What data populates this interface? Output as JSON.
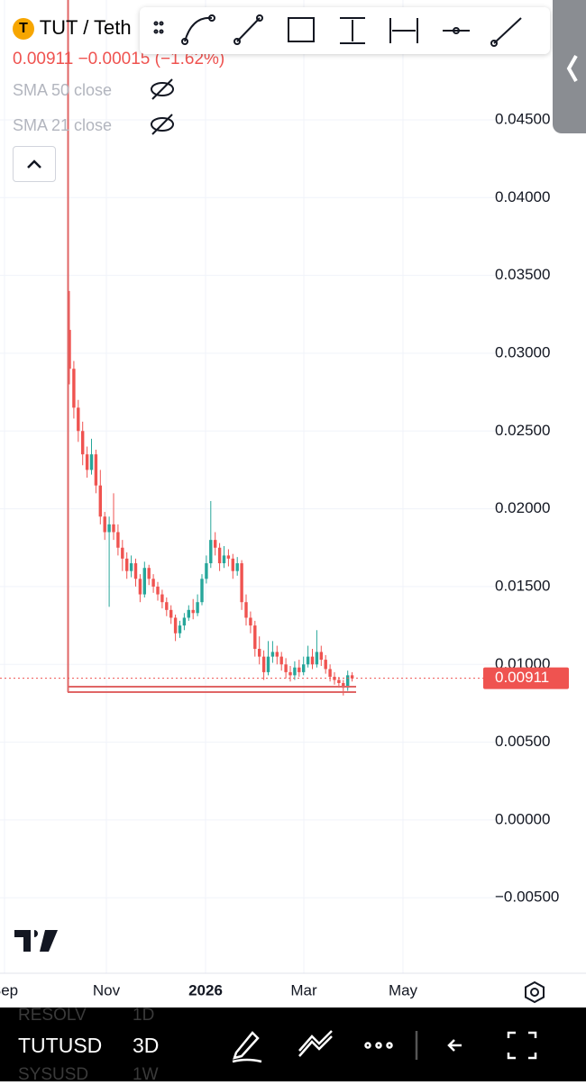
{
  "header": {
    "symbol": "TUT / Teth",
    "last": "0.00911",
    "change": "−0.00015 (−1.62%)"
  },
  "indicators": [
    "SMA 50 close",
    "SMA 21 close"
  ],
  "chart_data": {
    "type": "candlestick",
    "open": [
      0.0315,
      0.029,
      0.0265,
      0.025,
      0.0235,
      0.0225,
      0.0235,
      0.0215,
      0.0195,
      0.0185,
      0.019,
      0.0185,
      0.0175,
      0.0168,
      0.016,
      0.0165,
      0.0155,
      0.0145,
      0.0162,
      0.0155,
      0.015,
      0.0145,
      0.014,
      0.0135,
      0.013,
      0.012,
      0.0125,
      0.013,
      0.0135,
      0.0133,
      0.014,
      0.0155,
      0.0165,
      0.018,
      0.0175,
      0.0165,
      0.017,
      0.0168,
      0.016,
      0.0165,
      0.014,
      0.013,
      0.0125,
      0.011,
      0.0105,
      0.0095,
      0.0105,
      0.0108,
      0.0105,
      0.01,
      0.0095,
      0.0093,
      0.0098,
      0.0095,
      0.01,
      0.0105,
      0.01,
      0.0108,
      0.0103,
      0.0097,
      0.0092,
      0.009,
      0.0088,
      0.0085,
      0.0093
    ],
    "high": [
      0.034,
      0.0295,
      0.027,
      0.0256,
      0.024,
      0.0245,
      0.0238,
      0.0225,
      0.0198,
      0.0195,
      0.021,
      0.019,
      0.018,
      0.0172,
      0.017,
      0.0168,
      0.0158,
      0.0166,
      0.0164,
      0.0158,
      0.0153,
      0.0148,
      0.0143,
      0.0138,
      0.0132,
      0.0128,
      0.0133,
      0.0138,
      0.0142,
      0.0145,
      0.0158,
      0.017,
      0.0205,
      0.0185,
      0.0178,
      0.0176,
      0.0174,
      0.0171,
      0.0169,
      0.0167,
      0.0145,
      0.0134,
      0.0128,
      0.0118,
      0.0109,
      0.0115,
      0.0115,
      0.0112,
      0.0108,
      0.0104,
      0.0099,
      0.0102,
      0.0103,
      0.0105,
      0.0112,
      0.011,
      0.0122,
      0.0112,
      0.0106,
      0.01,
      0.0095,
      0.0092,
      0.009,
      0.0096,
      0.0095
    ],
    "low": [
      0.028,
      0.0258,
      0.0243,
      0.0228,
      0.022,
      0.0222,
      0.021,
      0.019,
      0.018,
      0.0137,
      0.018,
      0.017,
      0.016,
      0.0155,
      0.0156,
      0.015,
      0.014,
      0.0143,
      0.0151,
      0.0146,
      0.0141,
      0.0136,
      0.0131,
      0.0126,
      0.0115,
      0.0117,
      0.0122,
      0.0128,
      0.0129,
      0.0131,
      0.0138,
      0.0152,
      0.0162,
      0.017,
      0.016,
      0.0162,
      0.0163,
      0.0155,
      0.0157,
      0.0135,
      0.0125,
      0.012,
      0.0105,
      0.01,
      0.009,
      0.0093,
      0.0101,
      0.01,
      0.0096,
      0.0091,
      0.0089,
      0.009,
      0.0092,
      0.0093,
      0.0098,
      0.0097,
      0.0098,
      0.0099,
      0.0094,
      0.0089,
      0.0087,
      0.0085,
      0.008,
      0.0083,
      0.0089
    ],
    "close": [
      0.029,
      0.0265,
      0.025,
      0.0235,
      0.0225,
      0.0235,
      0.0215,
      0.0195,
      0.0185,
      0.019,
      0.0185,
      0.0175,
      0.0168,
      0.016,
      0.0165,
      0.0155,
      0.0145,
      0.0162,
      0.0155,
      0.015,
      0.0145,
      0.014,
      0.0135,
      0.013,
      0.012,
      0.0125,
      0.013,
      0.0135,
      0.0133,
      0.014,
      0.0155,
      0.0165,
      0.018,
      0.0175,
      0.0165,
      0.017,
      0.0168,
      0.016,
      0.0165,
      0.014,
      0.013,
      0.0125,
      0.011,
      0.0105,
      0.0095,
      0.0105,
      0.0108,
      0.0105,
      0.01,
      0.0095,
      0.0093,
      0.0098,
      0.0095,
      0.01,
      0.0105,
      0.01,
      0.0108,
      0.0103,
      0.0097,
      0.0092,
      0.009,
      0.0088,
      0.0085,
      0.0093,
      0.0091
    ],
    "up_color": "#26a69a",
    "down_color": "#ef5350",
    "last_price": 0.00911,
    "ylim": [
      -0.00985,
      0.0527
    ],
    "yticks": [
      {
        "value": 0.045,
        "label": "0.04500"
      },
      {
        "value": 0.04,
        "label": "0.04000"
      },
      {
        "value": 0.035,
        "label": "0.03500"
      },
      {
        "value": 0.03,
        "label": "0.03000"
      },
      {
        "value": 0.025,
        "label": "0.02500"
      },
      {
        "value": 0.02,
        "label": "0.02000"
      },
      {
        "value": 0.015,
        "label": "0.01500"
      },
      {
        "value": 0.01,
        "label": "0.01000"
      },
      {
        "value": 0.005,
        "label": "0.00500"
      },
      {
        "value": 0,
        "label": "0.00000"
      },
      {
        "value": -0.005,
        "label": "−0.00500"
      }
    ],
    "xticks": [
      "Sep",
      "Nov",
      "2026",
      "Mar",
      "May"
    ],
    "grid": true
  },
  "bottom_bar": {
    "symbol": "TUTUSD",
    "interval": "3D",
    "behind": [
      "RESOLV",
      "1D",
      "SYSUSD",
      "1W"
    ]
  }
}
